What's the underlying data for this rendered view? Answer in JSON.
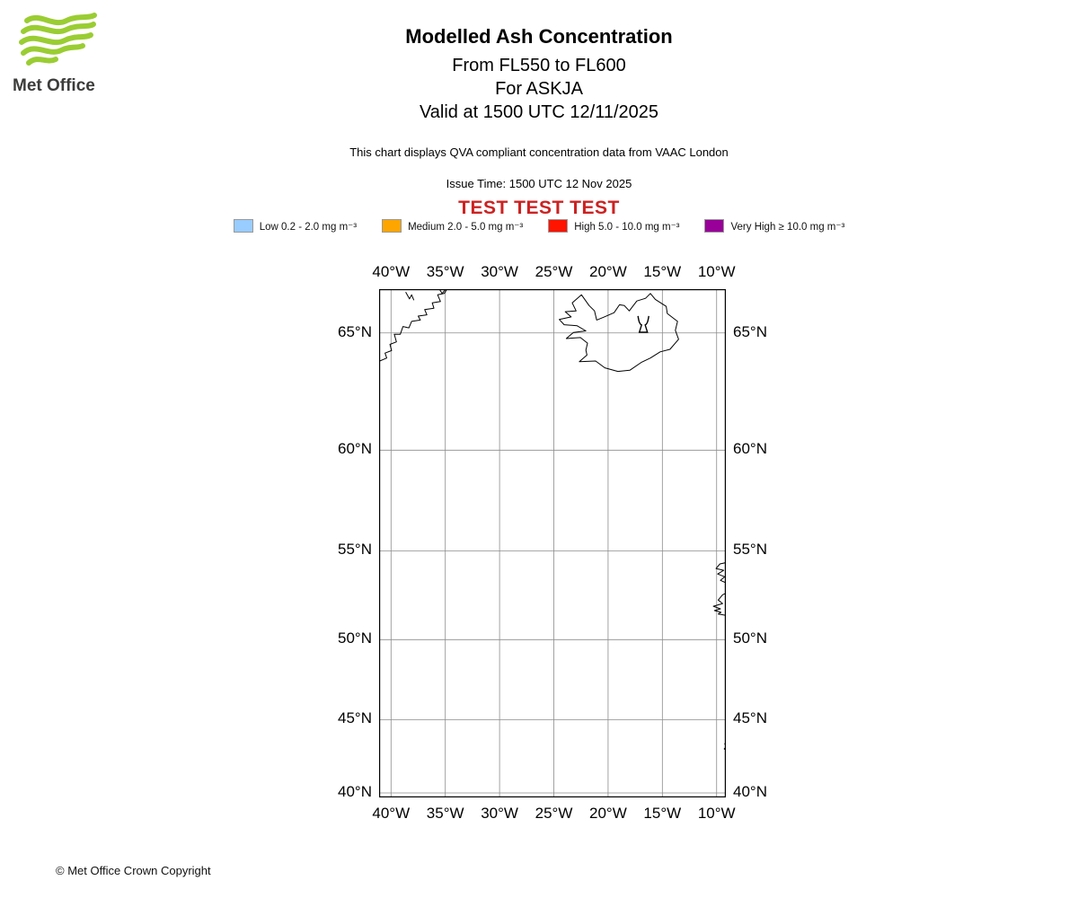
{
  "header": {
    "logo_text": "Met Office",
    "title": "Modelled Ash Concentration",
    "subtitle_fl": "From FL550 to FL600",
    "subtitle_volcano": "For ASKJA",
    "subtitle_valid": "Valid at 1500 UTC 12/11/2025",
    "description": "This chart displays QVA compliant concentration data from VAAC London",
    "issue_time": "Issue Time: 1500 UTC 12 Nov 2025",
    "test_banner": "TEST TEST TEST",
    "test_color": "#cc2222"
  },
  "legend": {
    "items": [
      {
        "name": "low",
        "label": "Low 0.2 - 2.0 mg m⁻³",
        "color": "#99ccff"
      },
      {
        "name": "medium",
        "label": "Medium 2.0 - 5.0 mg m⁻³",
        "color": "#ffa500"
      },
      {
        "name": "high",
        "label": "High 5.0 - 10.0 mg m⁻³",
        "color": "#ff1400"
      },
      {
        "name": "very-high",
        "label": "Very High ≥ 10.0 mg m⁻³",
        "color": "#990099"
      }
    ]
  },
  "map": {
    "extent": {
      "lon_min": -41.1,
      "lon_max": -9.15,
      "lat_min": 39.68,
      "lat_max": 66.66
    },
    "grid": {
      "lons": [
        {
          "value": -40,
          "label": "40°W"
        },
        {
          "value": -35,
          "label": "35°W"
        },
        {
          "value": -30,
          "label": "30°W"
        },
        {
          "value": -25,
          "label": "25°W"
        },
        {
          "value": -20,
          "label": "20°W"
        },
        {
          "value": -15,
          "label": "15°W"
        },
        {
          "value": -10,
          "label": "10°W"
        }
      ],
      "lats": [
        {
          "value": 65,
          "label": "65°N"
        },
        {
          "value": 60,
          "label": "60°N"
        },
        {
          "value": 55,
          "label": "55°N"
        },
        {
          "value": 50,
          "label": "50°N"
        },
        {
          "value": 45,
          "label": "45°N"
        },
        {
          "value": 40,
          "label": "40°N"
        }
      ]
    },
    "volcano": {
      "name": "ASKJA",
      "lon": -16.75,
      "lat": 65.03
    },
    "coastlines": {
      "iceland": [
        [
          -22.45,
          66.45
        ],
        [
          -21.75,
          66.05
        ],
        [
          -21.25,
          65.85
        ],
        [
          -21.05,
          65.5
        ],
        [
          -20.35,
          65.62
        ],
        [
          -19.45,
          65.78
        ],
        [
          -18.95,
          66.08
        ],
        [
          -18.5,
          66.05
        ],
        [
          -18.05,
          65.85
        ],
        [
          -17.35,
          66.22
        ],
        [
          -16.55,
          66.32
        ],
        [
          -16.1,
          66.5
        ],
        [
          -15.65,
          66.28
        ],
        [
          -14.65,
          66.02
        ],
        [
          -14.55,
          65.75
        ],
        [
          -13.6,
          65.45
        ],
        [
          -13.8,
          65.1
        ],
        [
          -13.5,
          64.75
        ],
        [
          -14.3,
          64.35
        ],
        [
          -15.2,
          64.25
        ],
        [
          -16.1,
          64.0
        ],
        [
          -16.95,
          63.82
        ],
        [
          -18.0,
          63.5
        ],
        [
          -19.1,
          63.45
        ],
        [
          -20.3,
          63.6
        ],
        [
          -21.15,
          63.88
        ],
        [
          -22.65,
          63.85
        ],
        [
          -21.95,
          64.12
        ],
        [
          -22.05,
          64.32
        ],
        [
          -21.9,
          64.6
        ],
        [
          -22.55,
          64.82
        ],
        [
          -23.85,
          64.78
        ],
        [
          -23.2,
          65.02
        ],
        [
          -22.05,
          65.08
        ],
        [
          -22.85,
          65.28
        ],
        [
          -24.05,
          65.32
        ],
        [
          -24.5,
          65.52
        ],
        [
          -23.4,
          65.62
        ],
        [
          -23.95,
          65.82
        ],
        [
          -22.95,
          65.85
        ],
        [
          -23.3,
          66.15
        ],
        [
          -22.45,
          66.45
        ]
      ],
      "greenland": [
        [
          -34.7,
          66.75
        ],
        [
          -35.1,
          66.5
        ],
        [
          -35.7,
          66.45
        ],
        [
          -35.45,
          66.2
        ],
        [
          -36.2,
          66.15
        ],
        [
          -36.05,
          65.95
        ],
        [
          -36.9,
          65.9
        ],
        [
          -36.7,
          65.7
        ],
        [
          -37.5,
          65.65
        ],
        [
          -37.3,
          65.5
        ],
        [
          -38.1,
          65.45
        ],
        [
          -38.35,
          65.2
        ],
        [
          -38.9,
          65.25
        ],
        [
          -39.15,
          64.95
        ],
        [
          -39.7,
          64.95
        ],
        [
          -39.5,
          64.65
        ],
        [
          -40.1,
          64.55
        ],
        [
          -39.95,
          64.3
        ],
        [
          -40.55,
          64.2
        ],
        [
          -40.4,
          64.0
        ],
        [
          -41.2,
          63.85
        ]
      ],
      "greenland_islands": [
        [
          [
            -38.65,
            66.55
          ],
          [
            -38.3,
            66.3
          ],
          [
            -38.1,
            66.45
          ],
          [
            -37.9,
            66.25
          ]
        ],
        [
          [
            -35.6,
            66.7
          ],
          [
            -35.3,
            66.5
          ],
          [
            -35.05,
            66.62
          ]
        ]
      ],
      "ireland": [
        [
          -8.9,
          54.4
        ],
        [
          -9.7,
          54.3
        ],
        [
          -10.05,
          54.05
        ],
        [
          -9.35,
          53.95
        ],
        [
          -9.9,
          53.75
        ],
        [
          -9.25,
          53.6
        ],
        [
          -9.65,
          53.4
        ],
        [
          -8.9,
          53.2
        ],
        [
          -9.2,
          53.05
        ],
        [
          -8.9,
          52.75
        ],
        [
          -9.45,
          52.6
        ],
        [
          -9.85,
          52.3
        ],
        [
          -9.45,
          52.1
        ],
        [
          -10.3,
          51.95
        ],
        [
          -9.65,
          51.8
        ],
        [
          -10.2,
          51.7
        ],
        [
          -9.6,
          51.6
        ],
        [
          -9.85,
          51.5
        ],
        [
          -8.9,
          51.4
        ]
      ],
      "spain": [
        [
          -8.9,
          43.55
        ],
        [
          -9.25,
          43.4
        ],
        [
          -9.1,
          43.2
        ],
        [
          -9.3,
          43.05
        ],
        [
          -8.9,
          42.9
        ]
      ]
    }
  },
  "footer": {
    "copyright": "© Met Office Crown Copyright"
  }
}
